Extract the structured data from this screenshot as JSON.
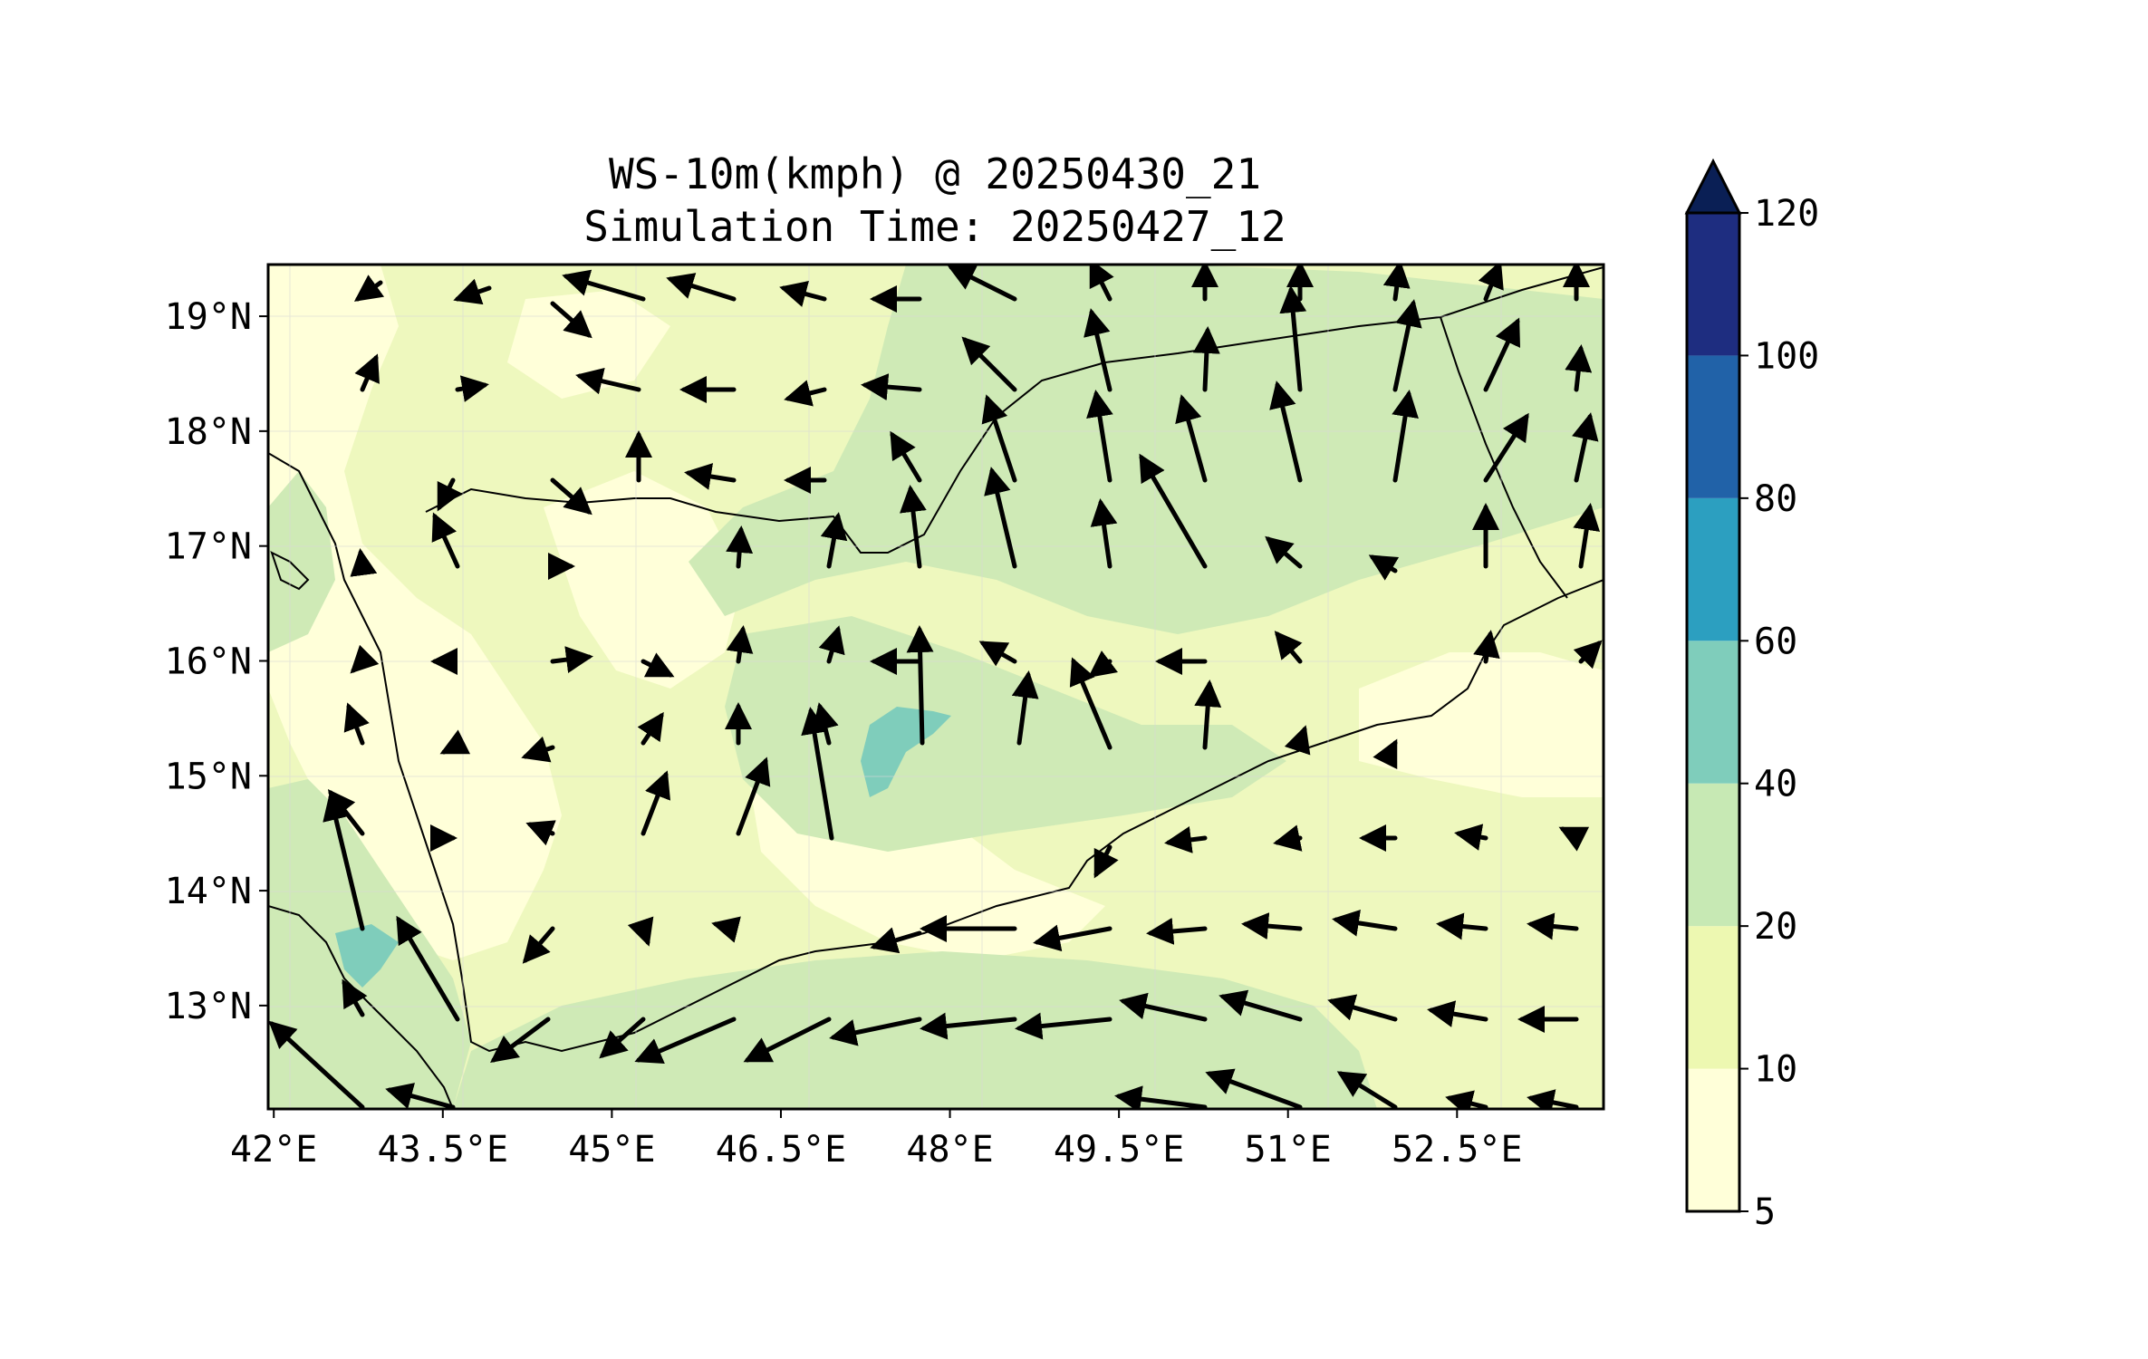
{
  "title": {
    "line1": "WS-10m(kmph) @ 20250430_21",
    "line2": "Simulation Time: 20250427_12"
  },
  "map": {
    "lon_range": [
      41.95,
      53.8
    ],
    "lat_range": [
      12.1,
      19.45
    ],
    "lon_ticks": [
      {
        "value": 42.0,
        "label": "42°E"
      },
      {
        "value": 43.5,
        "label": "43.5°E"
      },
      {
        "value": 45.0,
        "label": "45°E"
      },
      {
        "value": 46.5,
        "label": "46.5°E"
      },
      {
        "value": 48.0,
        "label": "48°E"
      },
      {
        "value": 49.5,
        "label": "49.5°E"
      },
      {
        "value": 51.0,
        "label": "51°E"
      },
      {
        "value": 52.5,
        "label": "52.5°E"
      }
    ],
    "lat_ticks": [
      {
        "value": 19,
        "label": "19°N"
      },
      {
        "value": 18,
        "label": "18°N"
      },
      {
        "value": 17,
        "label": "17°N"
      },
      {
        "value": 16,
        "label": "16°N"
      },
      {
        "value": 15,
        "label": "15°N"
      },
      {
        "value": 14,
        "label": "14°N"
      },
      {
        "value": 13,
        "label": "13°N"
      }
    ],
    "background_color": "#eef8be",
    "coastline_color": "#000000",
    "arrow_color": "#000000"
  },
  "colorbar": {
    "levels": [
      {
        "label": "5",
        "value": 5,
        "color": "#ffffd9"
      },
      {
        "label": "10",
        "value": 10,
        "color": "#edf8b1"
      },
      {
        "label": "20",
        "value": 20,
        "color": "#c7e9b4"
      },
      {
        "label": "40",
        "value": 40,
        "color": "#7fcdbb"
      },
      {
        "label": "60",
        "value": 60,
        "color": "#2c9fc0"
      },
      {
        "label": "80",
        "value": 80,
        "color": "#2162a8"
      },
      {
        "label": "100",
        "value": 100,
        "color": "#1e2d80"
      },
      {
        "label": "120",
        "value": 120,
        "color": "#0a1f55"
      }
    ],
    "extend": "max"
  }
}
